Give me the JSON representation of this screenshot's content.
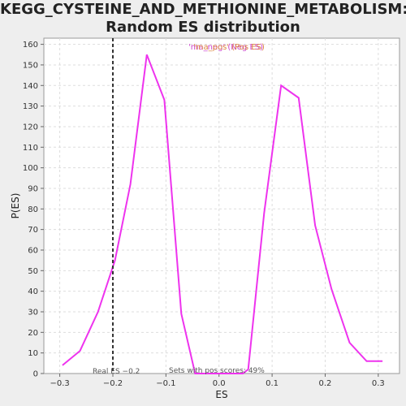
{
  "title_line1": "KEGG_CYSTEINE_AND_METHIONINE_METABOLISM:",
  "title_line2": "Random ES distribution",
  "colors": {
    "line": "#ee33ee",
    "plot_bg": "#ffffff",
    "page_bg": "#eeeeee",
    "grid": "#dddddd",
    "vline": "#333333"
  },
  "chart_data": {
    "type": "line",
    "xlabel": "ES",
    "ylabel": "P(ES)",
    "xlim": [
      -0.33,
      0.34
    ],
    "ylim": [
      0,
      163
    ],
    "x_ticks": [
      -0.3,
      -0.2,
      -0.1,
      0.0,
      0.1,
      0.2,
      0.3
    ],
    "x_tick_labels": [
      "−0.3",
      "−0.2",
      "−0.1",
      "0.0",
      "0.1",
      "0.2",
      "0.3"
    ],
    "y_ticks": [
      0,
      10,
      20,
      30,
      40,
      50,
      60,
      70,
      80,
      90,
      100,
      110,
      120,
      130,
      140,
      150,
      160
    ],
    "grid": true,
    "legend_label_a": "'ma_neg' (Neg ES)",
    "legend_label_b": "'ma_pos' (Pos ES)",
    "series": [
      {
        "x": [
          -0.295,
          -0.262,
          -0.228,
          -0.196,
          -0.167,
          -0.136,
          -0.103,
          -0.071,
          -0.045,
          0.0,
          0.045,
          0.055,
          0.085,
          0.117,
          0.15,
          0.181,
          0.212,
          0.246,
          0.278,
          0.308
        ],
        "values": [
          4,
          11,
          30,
          55,
          92,
          155,
          133,
          29,
          0,
          0,
          0,
          2,
          78,
          140,
          134,
          72,
          41,
          15,
          6,
          6
        ]
      }
    ],
    "real_es": -0.2,
    "real_es_label": "Real ES −0.2",
    "pos_scores_label": "Sets with pos scores: 49%"
  }
}
